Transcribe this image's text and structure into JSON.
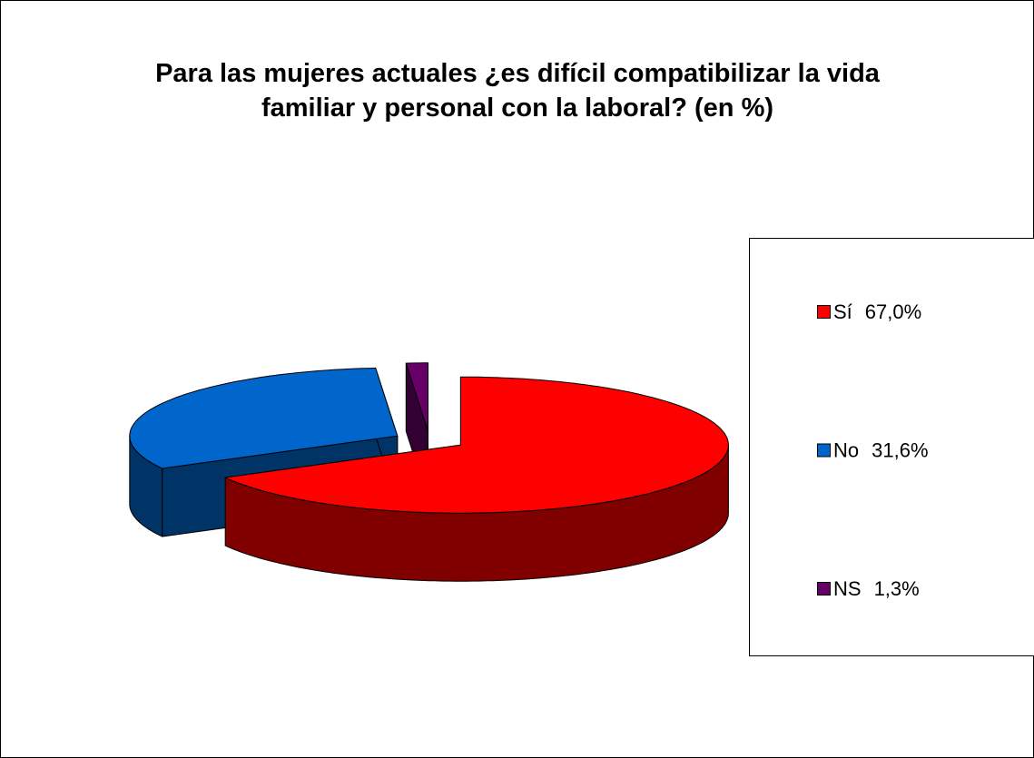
{
  "chart_data": {
    "type": "pie3d",
    "title": "Para las mujeres actuales ¿es difícil compatibilizar la vida familiar y personal con la laboral? (en %)",
    "categories": [
      "Sí",
      "No",
      "NS"
    ],
    "values": [
      67.0,
      31.6,
      1.3
    ],
    "value_labels": [
      "67,0%",
      "31,6%",
      "1,3%"
    ],
    "colors": [
      "#ff0000",
      "#0066cc",
      "#660066"
    ],
    "legend": "right"
  }
}
